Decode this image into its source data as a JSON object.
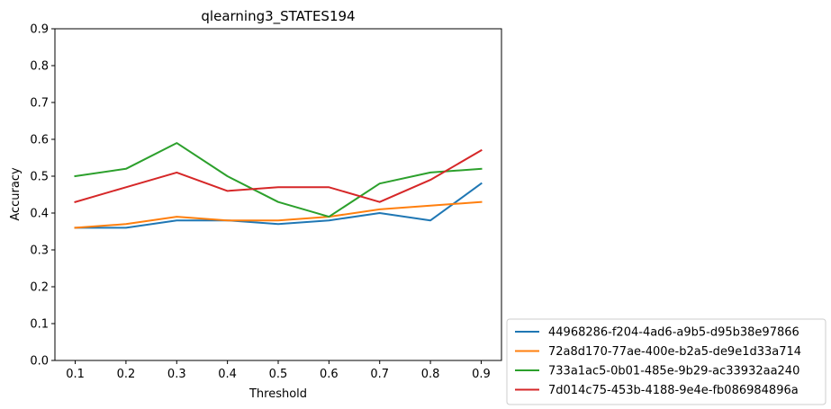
{
  "chart_data": {
    "type": "line",
    "title": "qlearning3_STATES194",
    "xlabel": "Threshold",
    "ylabel": "Accuracy",
    "x": [
      0.1,
      0.2,
      0.3,
      0.4,
      0.5,
      0.6,
      0.7,
      0.8,
      0.9
    ],
    "x_tick_labels": [
      "0.1",
      "0.2",
      "0.3",
      "0.4",
      "0.5",
      "0.6",
      "0.7",
      "0.8",
      "0.9"
    ],
    "xlim": [
      0.06,
      0.94
    ],
    "ylim": [
      0.0,
      0.9
    ],
    "y_ticks": [
      0.0,
      0.1,
      0.2,
      0.3,
      0.4,
      0.5,
      0.6,
      0.7,
      0.8,
      0.9
    ],
    "y_tick_labels": [
      "0.0",
      "0.1",
      "0.2",
      "0.3",
      "0.4",
      "0.5",
      "0.6",
      "0.7",
      "0.8",
      "0.9"
    ],
    "grid": false,
    "legend_position": "outside-bottom-right",
    "series": [
      {
        "name": "44968286-f204-4ad6-a9b5-d95b38e97866",
        "color": "#1f77b4",
        "values": [
          0.36,
          0.36,
          0.38,
          0.38,
          0.37,
          0.38,
          0.4,
          0.38,
          0.48
        ]
      },
      {
        "name": "72a8d170-77ae-400e-b2a5-de9e1d33a714",
        "color": "#ff7f0e",
        "values": [
          0.36,
          0.37,
          0.39,
          0.38,
          0.38,
          0.39,
          0.41,
          0.42,
          0.43
        ]
      },
      {
        "name": "733a1ac5-0b01-485e-9b29-ac33932aa240",
        "color": "#2ca02c",
        "values": [
          0.5,
          0.52,
          0.59,
          0.5,
          0.43,
          0.39,
          0.48,
          0.51,
          0.52
        ]
      },
      {
        "name": "7d014c75-453b-4188-9e4e-fb086984896a",
        "color": "#d62728",
        "values": [
          0.43,
          0.47,
          0.51,
          0.46,
          0.47,
          0.47,
          0.43,
          0.49,
          0.57
        ]
      }
    ]
  }
}
